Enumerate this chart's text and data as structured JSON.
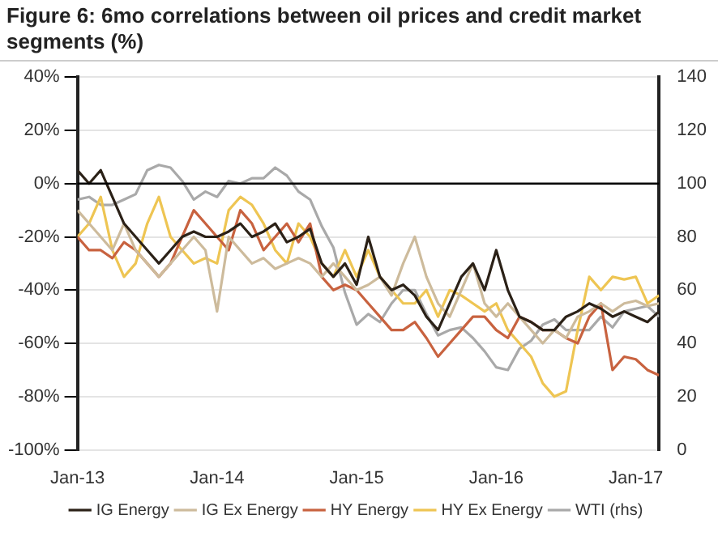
{
  "chart_data": {
    "type": "line",
    "title": "Figure 6: 6mo correlations between oil prices and credit market segments (%)",
    "x": [
      "2013-01",
      "2013-02",
      "2013-03",
      "2013-04",
      "2013-05",
      "2013-06",
      "2013-07",
      "2013-08",
      "2013-09",
      "2013-10",
      "2013-11",
      "2013-12",
      "2014-01",
      "2014-02",
      "2014-03",
      "2014-04",
      "2014-05",
      "2014-06",
      "2014-07",
      "2014-08",
      "2014-09",
      "2014-10",
      "2014-11",
      "2014-12",
      "2015-01",
      "2015-02",
      "2015-03",
      "2015-04",
      "2015-05",
      "2015-06",
      "2015-07",
      "2015-08",
      "2015-09",
      "2015-10",
      "2015-11",
      "2015-12",
      "2016-01",
      "2016-02",
      "2016-03",
      "2016-04",
      "2016-05",
      "2016-06",
      "2016-07",
      "2016-08",
      "2016-09",
      "2016-10",
      "2016-11",
      "2016-12",
      "2017-01",
      "2017-02",
      "2017-03"
    ],
    "series": [
      {
        "name": "IG Energy",
        "color": "#2b2117",
        "values": [
          5,
          0,
          5,
          -5,
          -15,
          -20,
          -25,
          -30,
          -25,
          -20,
          -18,
          -20,
          -20,
          -18,
          -15,
          -20,
          -18,
          -15,
          -22,
          -20,
          -17,
          -30,
          -35,
          -30,
          -38,
          -20,
          -35,
          -40,
          -38,
          -42,
          -50,
          -55,
          -45,
          -35,
          -30,
          -40,
          -25,
          -40,
          -50,
          -52,
          -55,
          -55,
          -50,
          -48,
          -45,
          -47,
          -50,
          -48,
          -50,
          -52,
          -48
        ]
      },
      {
        "name": "IG Ex Energy",
        "color": "#cdbb9c",
        "values": [
          -10,
          -15,
          -20,
          -25,
          -15,
          -25,
          -30,
          -35,
          -30,
          -25,
          -20,
          -25,
          -48,
          -20,
          -25,
          -30,
          -28,
          -32,
          -30,
          -28,
          -30,
          -35,
          -30,
          -35,
          -40,
          -38,
          -35,
          -42,
          -30,
          -20,
          -35,
          -45,
          -50,
          -40,
          -30,
          -45,
          -50,
          -45,
          -50,
          -55,
          -60,
          -55,
          -58,
          -50,
          -48,
          -45,
          -48,
          -45,
          -44,
          -46,
          -45
        ]
      },
      {
        "name": "HY Energy",
        "color": "#c8623f",
        "values": [
          -20,
          -25,
          -25,
          -28,
          -22,
          -25,
          -30,
          -35,
          -30,
          -20,
          -10,
          -15,
          -20,
          -25,
          -10,
          -15,
          -25,
          -20,
          -15,
          -22,
          -15,
          -35,
          -40,
          -38,
          -40,
          -45,
          -50,
          -55,
          -55,
          -52,
          -58,
          -65,
          -60,
          -55,
          -50,
          -50,
          -55,
          -58,
          -50,
          -52,
          -55,
          -55,
          -58,
          -60,
          -50,
          -45,
          -70,
          -65,
          -66,
          -70,
          -72
        ]
      },
      {
        "name": "HY Ex Energy",
        "color": "#eec553",
        "values": [
          -20,
          -15,
          -5,
          -25,
          -35,
          -30,
          -15,
          -5,
          -20,
          -25,
          -30,
          -28,
          -30,
          -10,
          -5,
          -8,
          -15,
          -25,
          -30,
          -15,
          -20,
          -30,
          -35,
          -25,
          -35,
          -25,
          -35,
          -40,
          -45,
          -45,
          -40,
          -50,
          -40,
          -42,
          -45,
          -48,
          -45,
          -55,
          -60,
          -65,
          -75,
          -80,
          -78,
          -55,
          -35,
          -40,
          -35,
          -36,
          -35,
          -45,
          -42
        ]
      },
      {
        "name": "WTI (rhs)",
        "color": "#a9a9a9",
        "axis": "y2",
        "values": [
          94,
          95,
          92,
          92,
          94,
          96,
          105,
          107,
          106,
          101,
          94,
          97,
          95,
          101,
          100,
          102,
          102,
          106,
          103,
          97,
          94,
          84,
          76,
          59,
          47,
          51,
          48,
          55,
          60,
          60,
          51,
          43,
          45,
          46,
          42,
          37,
          31,
          30,
          38,
          41,
          47,
          49,
          45,
          45,
          45,
          50,
          46,
          52,
          53,
          54,
          50
        ]
      }
    ],
    "xlim": [
      "2013-01",
      "2017-03"
    ],
    "xticks": [
      {
        "value": "2013-01",
        "label": "Jan-13"
      },
      {
        "value": "2014-01",
        "label": "Jan-14"
      },
      {
        "value": "2015-01",
        "label": "Jan-15"
      },
      {
        "value": "2016-01",
        "label": "Jan-16"
      },
      {
        "value": "2017-01",
        "label": "Jan-17"
      }
    ],
    "ylim": [
      -100,
      40
    ],
    "yticks": [
      {
        "value": -100,
        "label": "-100%"
      },
      {
        "value": -80,
        "label": "-80%"
      },
      {
        "value": -60,
        "label": "-60%"
      },
      {
        "value": -40,
        "label": "-40%"
      },
      {
        "value": -20,
        "label": "-20%"
      },
      {
        "value": 0,
        "label": "0%"
      },
      {
        "value": 20,
        "label": "20%"
      },
      {
        "value": 40,
        "label": "40%"
      }
    ],
    "y2lim": [
      0,
      140
    ],
    "y2ticks": [
      0,
      20,
      40,
      60,
      80,
      100,
      120,
      140
    ],
    "ref_lines": [
      {
        "axis": "y",
        "value": 0,
        "color": "#000000"
      }
    ],
    "grid": "y",
    "legend": "bottom",
    "marker": "none",
    "line_style": "solid"
  }
}
